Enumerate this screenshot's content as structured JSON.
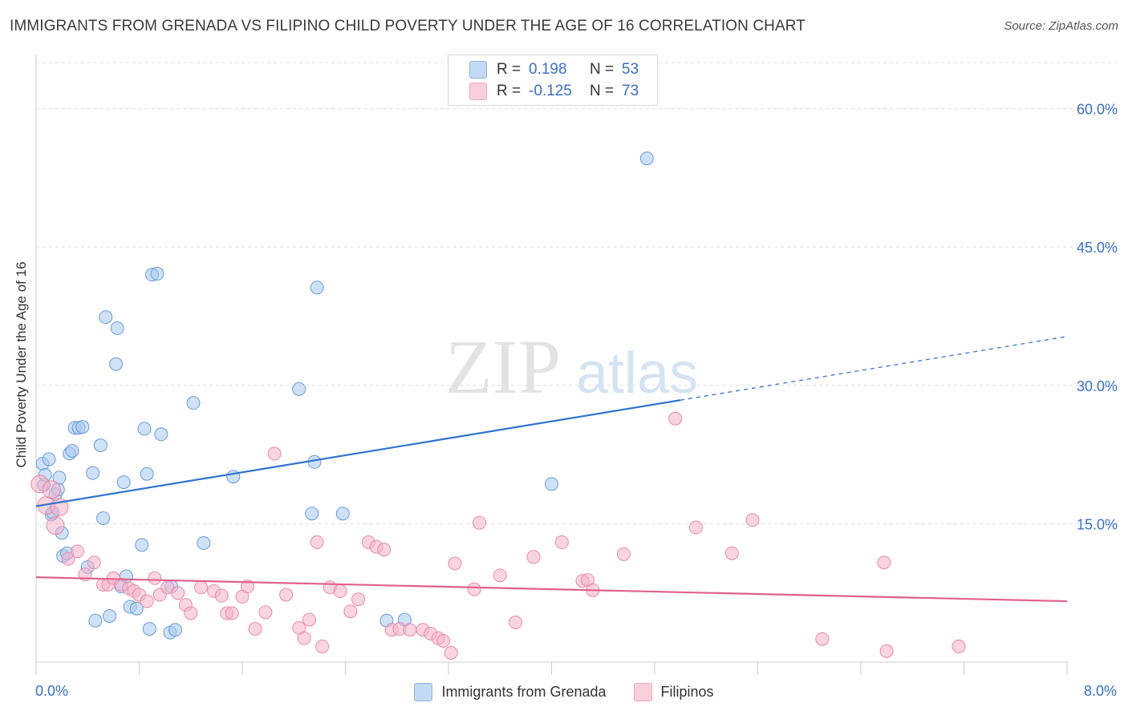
{
  "header": {
    "title": "IMMIGRANTS FROM GRENADA VS FILIPINO CHILD POVERTY UNDER THE AGE OF 16 CORRELATION CHART",
    "source": "Source: ZipAtlas.com"
  },
  "watermark": {
    "part1": "ZIP",
    "part2": "atlas"
  },
  "legend": {
    "rows": [
      {
        "r_label": "R =",
        "r_value": "0.198",
        "n_label": "N =",
        "n_value": "53",
        "color": "#a8c8f0"
      },
      {
        "r_label": "R =",
        "r_value": "-0.125",
        "n_label": "N =",
        "n_value": "73",
        "color": "#f5b3c8"
      }
    ]
  },
  "chart_data": {
    "type": "scatter",
    "title": "IMMIGRANTS FROM GRENADA VS FILIPINO CHILD POVERTY UNDER THE AGE OF 16 CORRELATION CHART",
    "xlabel": "",
    "ylabel": "Child Poverty Under the Age of 16",
    "xlim": [
      0,
      8
    ],
    "ylim": [
      0,
      65
    ],
    "x_tick_labels": [
      "0.0%",
      "8.0%"
    ],
    "y_ticks": [
      15,
      30,
      45,
      60
    ],
    "y_tick_labels": [
      "15.0%",
      "30.0%",
      "45.0%",
      "60.0%"
    ],
    "grid": true,
    "legend_position": "bottom",
    "series": [
      {
        "name": "Immigrants from Grenada",
        "color": "#a8c8f0",
        "stroke": "#6a9bd8",
        "trend": {
          "x0": 0,
          "y0": 16.9,
          "x1": 5.0,
          "y1": 28.4,
          "x_end": 8.0,
          "y_end": 35.3,
          "color": "#2f74d0"
        },
        "points": [
          [
            0.05,
            21.5
          ],
          [
            0.06,
            19.2
          ],
          [
            0.07,
            20.3
          ],
          [
            0.1,
            22.0
          ],
          [
            0.12,
            16.0
          ],
          [
            0.13,
            16.2
          ],
          [
            0.15,
            18.2
          ],
          [
            0.17,
            18.7
          ],
          [
            0.18,
            20.0
          ],
          [
            0.2,
            14.0
          ],
          [
            0.21,
            11.5
          ],
          [
            0.24,
            11.8
          ],
          [
            0.26,
            22.6
          ],
          [
            0.28,
            22.9
          ],
          [
            0.3,
            25.4
          ],
          [
            0.33,
            25.4
          ],
          [
            0.36,
            25.5
          ],
          [
            0.4,
            10.3
          ],
          [
            0.44,
            20.5
          ],
          [
            0.46,
            4.5
          ],
          [
            0.5,
            23.5
          ],
          [
            0.52,
            15.6
          ],
          [
            0.54,
            37.4
          ],
          [
            0.57,
            5.0
          ],
          [
            0.62,
            32.3
          ],
          [
            0.63,
            36.2
          ],
          [
            0.66,
            8.2
          ],
          [
            0.68,
            19.5
          ],
          [
            0.7,
            9.3
          ],
          [
            0.73,
            6.0
          ],
          [
            0.78,
            5.8
          ],
          [
            0.82,
            12.7
          ],
          [
            0.84,
            25.3
          ],
          [
            0.86,
            20.4
          ],
          [
            0.88,
            3.6
          ],
          [
            0.9,
            42.0
          ],
          [
            0.94,
            42.1
          ],
          [
            0.97,
            24.7
          ],
          [
            1.04,
            3.2
          ],
          [
            1.05,
            8.2
          ],
          [
            1.08,
            3.5
          ],
          [
            1.22,
            28.1
          ],
          [
            1.3,
            12.9
          ],
          [
            1.53,
            20.1
          ],
          [
            2.04,
            29.6
          ],
          [
            2.14,
            16.1
          ],
          [
            2.16,
            21.7
          ],
          [
            2.18,
            40.6
          ],
          [
            2.38,
            16.1
          ],
          [
            2.72,
            4.5
          ],
          [
            2.86,
            4.6
          ],
          [
            4.0,
            19.3
          ],
          [
            4.74,
            54.6
          ]
        ]
      },
      {
        "name": "Filipinos",
        "color": "#f5b3c8",
        "stroke": "#e88aaa",
        "trend": {
          "x0": 0,
          "y0": 9.2,
          "x1": 8.0,
          "y1": 6.6,
          "color": "#e0608e"
        },
        "points": [
          [
            0.03,
            19.3
          ],
          [
            0.08,
            17.0
          ],
          [
            0.12,
            18.7
          ],
          [
            0.15,
            14.8
          ],
          [
            0.18,
            16.8
          ],
          [
            0.25,
            11.2
          ],
          [
            0.32,
            12.0
          ],
          [
            0.38,
            9.5
          ],
          [
            0.45,
            10.8
          ],
          [
            0.52,
            8.4
          ],
          [
            0.56,
            8.4
          ],
          [
            0.6,
            9.1
          ],
          [
            0.66,
            8.4
          ],
          [
            0.72,
            8.0
          ],
          [
            0.76,
            7.7
          ],
          [
            0.8,
            7.3
          ],
          [
            0.86,
            6.6
          ],
          [
            0.92,
            9.1
          ],
          [
            0.96,
            7.3
          ],
          [
            1.02,
            8.1
          ],
          [
            1.1,
            7.5
          ],
          [
            1.16,
            6.2
          ],
          [
            1.2,
            5.3
          ],
          [
            1.28,
            8.1
          ],
          [
            1.38,
            7.7
          ],
          [
            1.44,
            7.2
          ],
          [
            1.48,
            5.3
          ],
          [
            1.52,
            5.3
          ],
          [
            1.6,
            7.1
          ],
          [
            1.64,
            8.2
          ],
          [
            1.7,
            3.6
          ],
          [
            1.78,
            5.4
          ],
          [
            1.85,
            22.6
          ],
          [
            1.94,
            7.3
          ],
          [
            2.04,
            3.7
          ],
          [
            2.08,
            2.6
          ],
          [
            2.12,
            4.6
          ],
          [
            2.18,
            13.0
          ],
          [
            2.22,
            1.7
          ],
          [
            2.28,
            8.1
          ],
          [
            2.36,
            7.7
          ],
          [
            2.44,
            5.5
          ],
          [
            2.5,
            6.8
          ],
          [
            2.58,
            13.0
          ],
          [
            2.64,
            12.5
          ],
          [
            2.7,
            12.2
          ],
          [
            2.76,
            3.5
          ],
          [
            2.82,
            3.6
          ],
          [
            2.9,
            3.5
          ],
          [
            3.0,
            3.5
          ],
          [
            3.06,
            3.1
          ],
          [
            3.12,
            2.6
          ],
          [
            3.16,
            2.3
          ],
          [
            3.22,
            1.0
          ],
          [
            3.25,
            10.7
          ],
          [
            3.4,
            7.9
          ],
          [
            3.44,
            15.1
          ],
          [
            3.6,
            9.4
          ],
          [
            3.72,
            4.3
          ],
          [
            3.86,
            11.4
          ],
          [
            4.08,
            13.0
          ],
          [
            4.24,
            8.8
          ],
          [
            4.28,
            8.9
          ],
          [
            4.32,
            7.8
          ],
          [
            4.56,
            11.7
          ],
          [
            4.96,
            26.4
          ],
          [
            5.12,
            14.6
          ],
          [
            5.4,
            11.8
          ],
          [
            5.56,
            15.4
          ],
          [
            6.1,
            2.5
          ],
          [
            6.58,
            10.8
          ],
          [
            6.6,
            1.2
          ],
          [
            7.16,
            1.7
          ]
        ]
      }
    ]
  }
}
